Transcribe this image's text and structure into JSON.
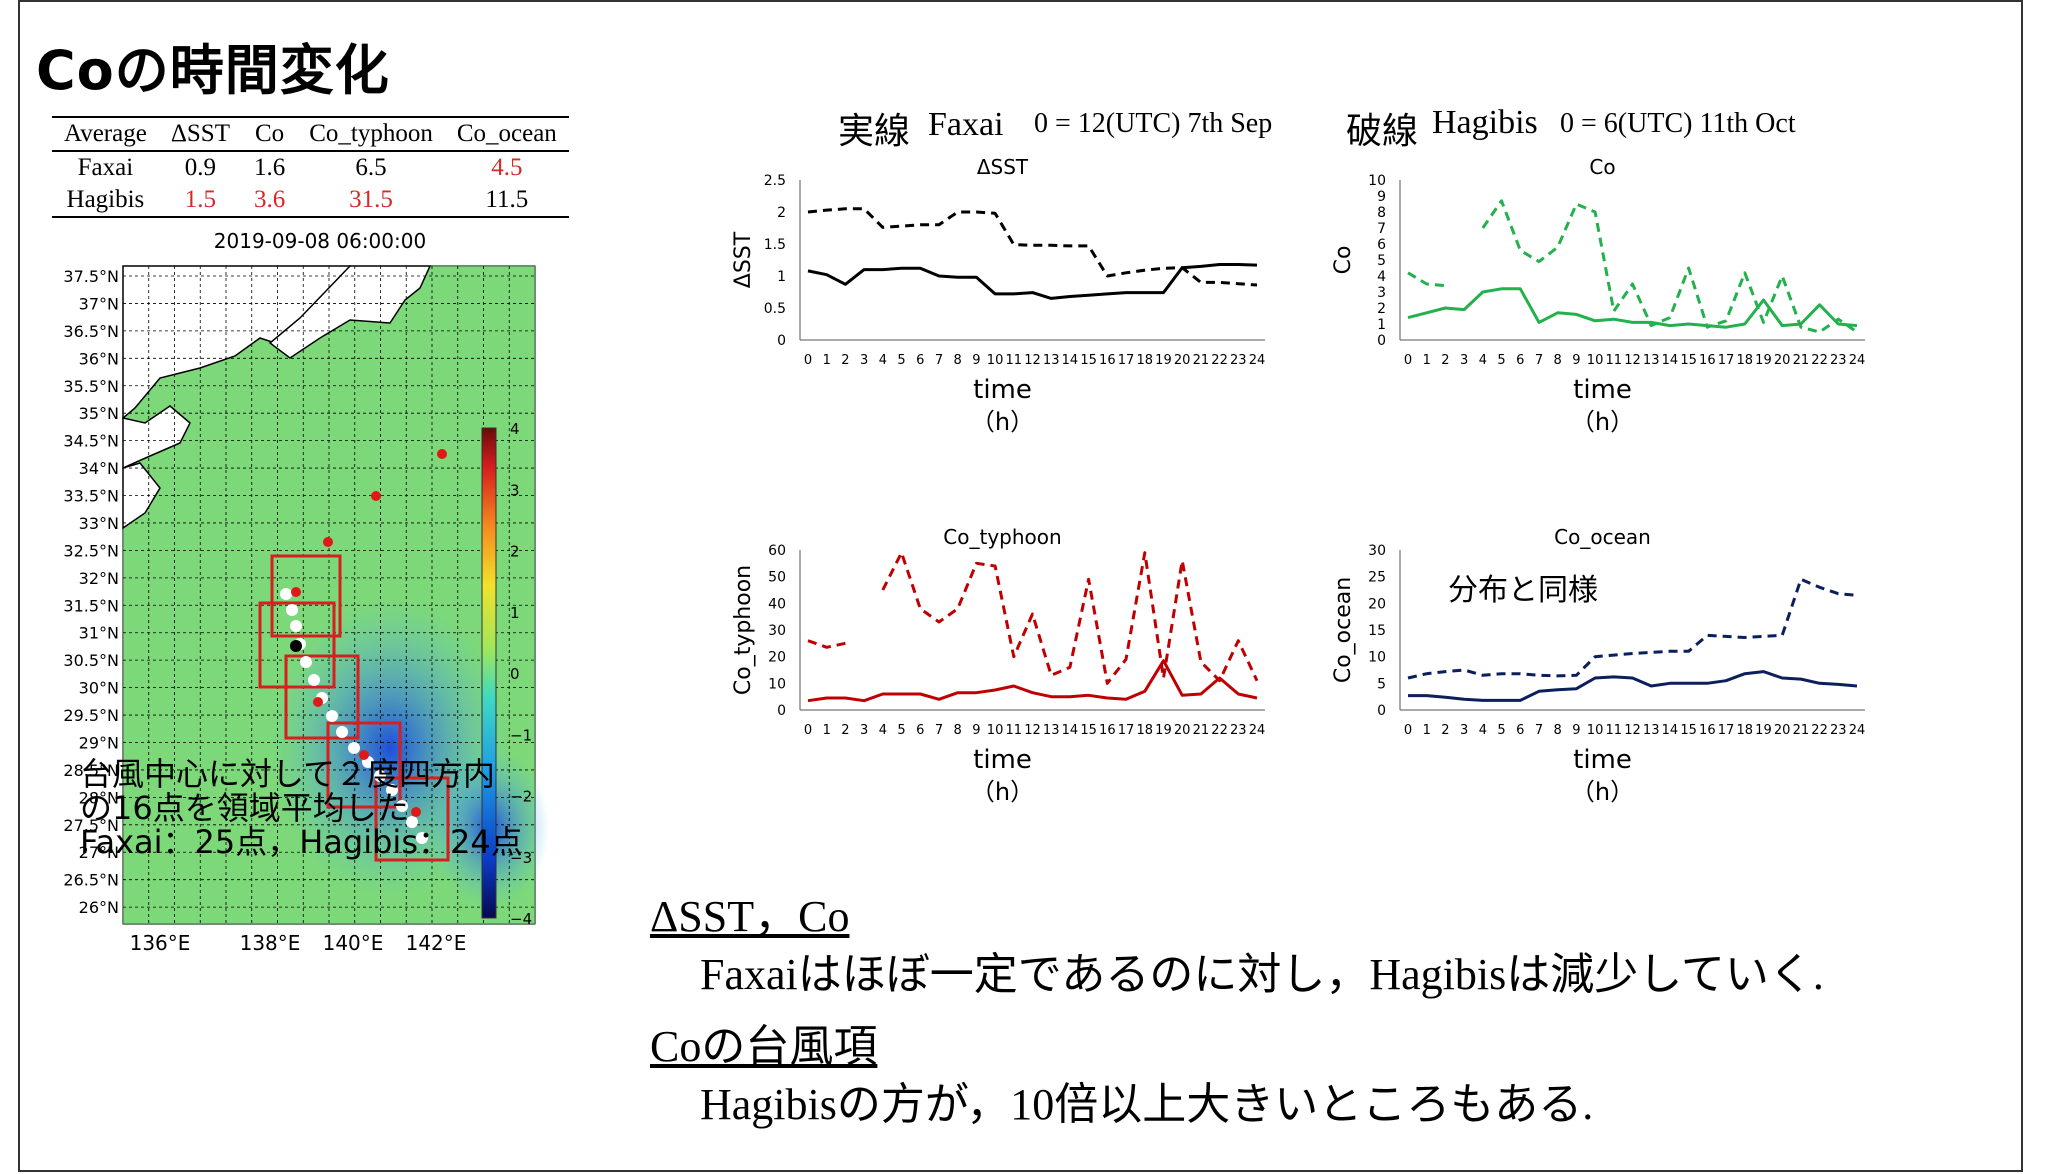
{
  "page": {
    "title": "Coの時間変化"
  },
  "table": {
    "headers": [
      "Average",
      "ΔSST",
      "Co",
      "Co_typhoon",
      "Co_ocean"
    ],
    "rows": [
      {
        "name": "Faxai",
        "sst": "0.9",
        "co": "1.6",
        "co_typhoon": "6.5",
        "co_ocean": "4.5"
      },
      {
        "name": "Hagibis",
        "sst": "1.5",
        "co": "3.6",
        "co_typhoon": "31.5",
        "co_ocean": "11.5"
      }
    ],
    "highlight_color": "#d62828"
  },
  "map": {
    "title": "2019-09-08 06:00:00",
    "lat_labels": [
      "37.5°N",
      "37°N",
      "36.5°N",
      "36°N",
      "35.5°N",
      "35°N",
      "34.5°N",
      "34°N",
      "33.5°N",
      "33°N",
      "32.5°N",
      "32°N",
      "31.5°N",
      "31°N",
      "30.5°N",
      "30°N",
      "29.5°N",
      "29°N",
      "28.5°N",
      "28°N",
      "27.5°N",
      "27°N",
      "26.5°N",
      "26°N"
    ],
    "lon_labels": [
      "136°E",
      "138°E",
      "140°E",
      "142°E"
    ],
    "colorbar_ticks": [
      "4",
      "3",
      "2",
      "1",
      "0",
      "−1",
      "−2",
      "−3",
      "−4"
    ]
  },
  "legend_line": {
    "solid_label": "実線",
    "solid_name": "Faxai",
    "solid_time": "0 = 12(UTC) 7th Sep",
    "dashed_label": "破線",
    "dashed_name": "Hagibis",
    "dashed_time": "0 = 6(UTC) 11th Oct"
  },
  "x_ticks": [
    "0",
    "1",
    "2",
    "3",
    "4",
    "5",
    "6",
    "7",
    "8",
    "9",
    "10",
    "11",
    "12",
    "13",
    "14",
    "15",
    "16",
    "17",
    "18",
    "19",
    "20",
    "21",
    "22",
    "23",
    "24"
  ],
  "chart_data": [
    {
      "type": "line",
      "title": "ΔSST",
      "ylabel": "ΔSST",
      "xlabel": "time",
      "xunit": "（h）",
      "ylim": [
        0,
        2.5
      ],
      "yticks": [
        "0",
        "0.5",
        "1",
        "1.5",
        "2",
        "2.5"
      ],
      "color": "#000000",
      "series": [
        {
          "name": "Faxai",
          "dashed": false,
          "values": [
            1.08,
            1.02,
            0.87,
            1.1,
            1.1,
            1.12,
            1.12,
            1.0,
            0.98,
            0.98,
            0.72,
            0.72,
            0.74,
            0.65,
            0.68,
            0.7,
            0.72,
            0.74,
            0.74,
            0.74,
            1.13,
            1.15,
            1.18,
            1.18,
            1.17
          ]
        },
        {
          "name": "Hagibis",
          "dashed": true,
          "values": [
            2.0,
            2.03,
            2.05,
            2.05,
            1.76,
            1.78,
            1.8,
            1.8,
            2.0,
            2.0,
            1.98,
            1.49,
            1.48,
            1.48,
            1.47,
            1.47,
            1.0,
            1.05,
            1.09,
            1.12,
            1.13,
            0.9,
            0.9,
            0.88,
            0.86
          ]
        }
      ]
    },
    {
      "type": "line",
      "title": "Co",
      "ylabel": "Co",
      "xlabel": "time",
      "xunit": "（h）",
      "ylim": [
        0,
        10
      ],
      "yticks": [
        "0",
        "1",
        "2",
        "3",
        "4",
        "5",
        "6",
        "7",
        "8",
        "9",
        "10"
      ],
      "color": "#22b14c",
      "series": [
        {
          "name": "Faxai",
          "dashed": false,
          "values": [
            1.4,
            1.7,
            2.0,
            1.9,
            3.0,
            3.2,
            3.2,
            1.1,
            1.7,
            1.6,
            1.2,
            1.3,
            1.1,
            1.1,
            0.9,
            1.0,
            0.9,
            0.8,
            1.0,
            2.5,
            0.9,
            1.0,
            2.2,
            1.0,
            0.9
          ]
        },
        {
          "name": "Hagibis",
          "dashed": true,
          "values": [
            4.2,
            3.5,
            3.4,
            null,
            7.0,
            8.7,
            5.6,
            4.9,
            5.8,
            8.5,
            8.0,
            1.8,
            3.5,
            0.9,
            1.4,
            4.5,
            0.8,
            1.2,
            4.2,
            1.1,
            4.0,
            0.8,
            0.5,
            1.3,
            0.5
          ]
        }
      ]
    },
    {
      "type": "line",
      "title": "Co_typhoon",
      "ylabel": "Co_typhoon",
      "xlabel": "time",
      "xunit": "（h）",
      "ylim": [
        0,
        60
      ],
      "yticks": [
        "0",
        "10",
        "20",
        "30",
        "40",
        "50",
        "60"
      ],
      "color": "#c00000",
      "series": [
        {
          "name": "Faxai",
          "dashed": false,
          "values": [
            3.5,
            4.5,
            4.5,
            3.5,
            6.0,
            6.0,
            6.0,
            4.0,
            6.5,
            6.5,
            7.5,
            9.0,
            6.5,
            5.0,
            5.0,
            5.5,
            4.5,
            4.0,
            7.0,
            18.5,
            5.5,
            6.0,
            12.0,
            6.0,
            4.5
          ]
        },
        {
          "name": "Hagibis",
          "dashed": true,
          "values": [
            26.0,
            23.5,
            25.0,
            null,
            45.0,
            59.0,
            38.0,
            33.0,
            38.0,
            55.0,
            54.0,
            20.0,
            36.0,
            13.0,
            16.0,
            49.0,
            10.0,
            19.0,
            59.0,
            12.0,
            56.0,
            18.0,
            11.0,
            26.0,
            11.0
          ]
        }
      ]
    },
    {
      "type": "line",
      "title": "Co_ocean",
      "ylabel": "Co_ocean",
      "xlabel": "time",
      "xunit": "（h）",
      "ylim": [
        0,
        30
      ],
      "yticks": [
        "0",
        "5",
        "10",
        "15",
        "20",
        "25",
        "30"
      ],
      "color": "#0b1f5c",
      "annotation": "分布と同様",
      "series": [
        {
          "name": "Faxai",
          "dashed": false,
          "values": [
            2.7,
            2.7,
            2.4,
            2.0,
            1.8,
            1.8,
            1.8,
            3.5,
            3.8,
            4.0,
            6.0,
            6.2,
            6.0,
            4.5,
            5.0,
            5.0,
            5.0,
            5.5,
            6.8,
            7.2,
            6.0,
            5.8,
            5.0,
            4.8,
            4.5
          ]
        },
        {
          "name": "Hagibis",
          "dashed": true,
          "values": [
            6.0,
            6.8,
            7.2,
            7.5,
            6.5,
            6.8,
            6.8,
            6.5,
            6.4,
            6.5,
            10.0,
            10.3,
            10.6,
            10.8,
            11.0,
            11.0,
            14.0,
            13.8,
            13.6,
            13.8,
            14.0,
            24.5,
            23.0,
            21.8,
            21.5
          ]
        }
      ]
    }
  ],
  "notes": {
    "map_caption_1": "台風中心に対して２度四方内",
    "map_caption_2": "の16点を領域平均した",
    "map_caption_3": "Faxai：25点，Hagibis：24点",
    "heading1": "ΔSST，Co",
    "text1": "Faxaiはほぼ一定であるのに対し，Hagibisは減少していく.",
    "heading2": "Coの台風項",
    "text2": "Hagibisの方が，10倍以上大きいところもある."
  }
}
